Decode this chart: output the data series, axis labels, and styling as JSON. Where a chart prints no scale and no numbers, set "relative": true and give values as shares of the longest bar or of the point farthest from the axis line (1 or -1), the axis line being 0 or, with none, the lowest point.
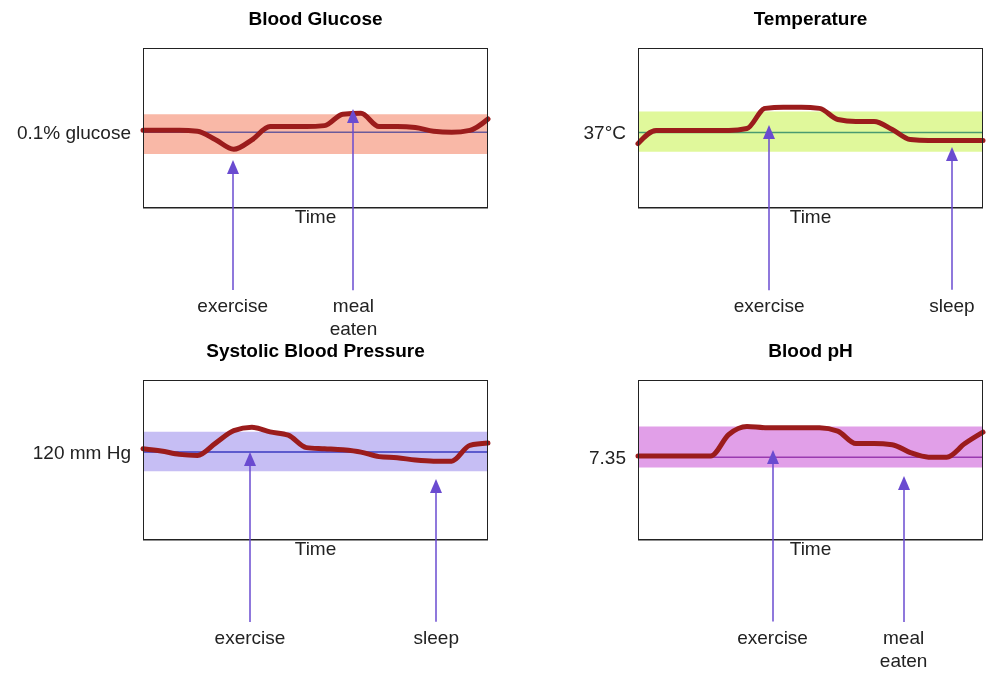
{
  "chart_data": [
    {
      "type": "line",
      "title": "Blood Glucose",
      "xlabel": "Time",
      "relative": true,
      "categories": [
        null,
        null,
        null,
        null,
        null,
        null,
        null,
        null,
        null,
        null,
        null,
        null,
        null,
        null,
        null,
        null,
        null,
        null,
        null,
        null
      ],
      "series": [
        {
          "color": "#9b1c1c",
          "values": [
            0.82,
            0.82,
            0.82,
            0.81,
            0.72,
            0.62,
            0.72,
            0.86,
            0.86,
            0.86,
            0.87,
            0.99,
            1.0,
            0.86,
            0.86,
            0.85,
            0.81,
            0.8,
            0.82,
            0.94
          ]
        }
      ],
      "ref_lines": [
        {
          "axis": "y",
          "value": 0.8,
          "label": "0.1% glucose",
          "color": "#6b5a9a"
        }
      ],
      "bands": [
        {
          "axis": "y",
          "from": 0.57,
          "to": 0.99,
          "color": "#f7a08a"
        }
      ],
      "annotations": [
        "exercise",
        "meal eaten"
      ]
    },
    {
      "type": "line",
      "title": "Temperature",
      "xlabel": "Time",
      "relative": true,
      "categories": [
        null,
        null,
        null,
        null,
        null,
        null,
        null,
        null,
        null,
        null,
        null,
        null,
        null,
        null,
        null,
        null,
        null,
        null,
        null,
        null
      ],
      "series": [
        {
          "color": "#9b1c1c",
          "values": [
            0.64,
            0.77,
            0.77,
            0.77,
            0.77,
            0.77,
            0.79,
            0.99,
            1.0,
            1.0,
            0.99,
            0.88,
            0.86,
            0.86,
            0.78,
            0.68,
            0.67,
            0.67,
            0.67,
            0.67
          ]
        }
      ],
      "ref_lines": [
        {
          "axis": "y",
          "value": 0.75,
          "label": "37°C",
          "color": "#4a9a70"
        }
      ],
      "bands": [
        {
          "axis": "y",
          "from": 0.56,
          "to": 0.96,
          "color": "#d6f57a"
        }
      ],
      "annotations": [
        "exercise",
        "sleep"
      ]
    },
    {
      "type": "line",
      "title": "Systolic Blood Pressure",
      "xlabel": "Time",
      "relative": true,
      "categories": [
        null,
        null,
        null,
        null,
        null,
        null,
        null,
        null,
        null,
        null,
        null,
        null,
        null,
        null,
        null,
        null,
        null,
        null,
        null,
        null
      ],
      "series": [
        {
          "color": "#9b1c1c",
          "values": [
            0.81,
            0.79,
            0.76,
            0.75,
            0.86,
            0.97,
            1.0,
            0.96,
            0.93,
            0.82,
            0.81,
            0.8,
            0.78,
            0.74,
            0.73,
            0.71,
            0.7,
            0.7,
            0.84,
            0.86
          ]
        }
      ],
      "ref_lines": [
        {
          "axis": "y",
          "value": 0.78,
          "label": "120 mm Hg",
          "color": "#3a3ac0"
        }
      ],
      "bands": [
        {
          "axis": "y",
          "from": 0.61,
          "to": 0.96,
          "color": "#b3a8f0"
        }
      ],
      "annotations": [
        "exercise",
        "sleep"
      ]
    },
    {
      "type": "line",
      "title": "Blood pH",
      "xlabel": "Time",
      "relative": true,
      "categories": [
        null,
        null,
        null,
        null,
        null,
        null,
        null,
        null,
        null,
        null,
        null,
        null,
        null,
        null,
        null,
        null,
        null,
        null,
        null,
        null
      ],
      "series": [
        {
          "color": "#9b1c1c",
          "values": [
            0.74,
            0.74,
            0.74,
            0.74,
            0.74,
            0.93,
            1.0,
            0.99,
            0.99,
            0.99,
            0.99,
            0.96,
            0.85,
            0.85,
            0.84,
            0.77,
            0.73,
            0.73,
            0.85,
            0.95
          ]
        }
      ],
      "ref_lines": [
        {
          "axis": "y",
          "value": 0.73,
          "color": "#9a3ab0"
        }
      ],
      "bands": [
        {
          "axis": "y",
          "from": 0.64,
          "to": 1.0,
          "color": "#d77fe0"
        }
      ],
      "annotations": [
        "exercise",
        "meal eaten",
        "7.35"
      ]
    }
  ]
}
